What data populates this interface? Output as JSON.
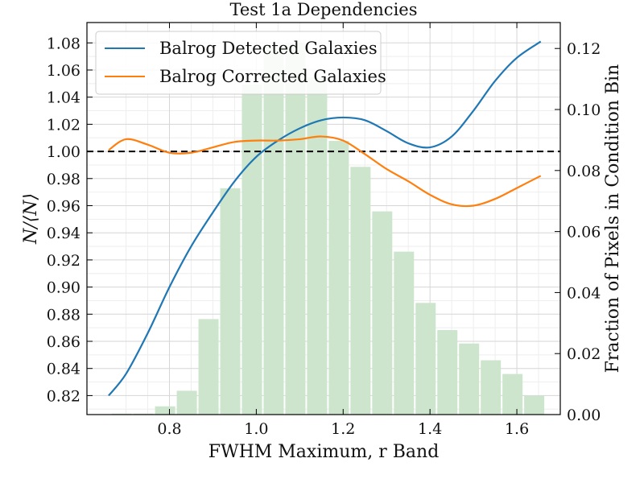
{
  "chart_data": {
    "type": "line",
    "title": "Test 1a Dependencies",
    "xlabel": "FWHM Maximum, r Band",
    "ylabel": "N/⟨N⟩",
    "y2label": "Fraction of Pixels in Condition Bin",
    "xlim": [
      0.61,
      1.7
    ],
    "ylim": [
      0.806,
      1.095
    ],
    "y2lim": [
      0.0,
      0.1285
    ],
    "xticks": [
      "0.8",
      "1.0",
      "1.2",
      "1.4",
      "1.6"
    ],
    "yticks": [
      "0.82",
      "0.84",
      "0.86",
      "0.88",
      "0.90",
      "0.92",
      "0.94",
      "0.96",
      "0.98",
      "1.00",
      "1.02",
      "1.04",
      "1.06",
      "1.08"
    ],
    "y2ticks": [
      "0.00",
      "0.02",
      "0.04",
      "0.06",
      "0.08",
      "0.10",
      "0.12"
    ],
    "reference_line": 1.0,
    "legend_position": "top-left",
    "grid": true,
    "series": [
      {
        "name": "Balrog Detected Galaxies",
        "color": "#1f77b4",
        "x": [
          0.66,
          0.7,
          0.75,
          0.8,
          0.85,
          0.9,
          0.95,
          1.0,
          1.05,
          1.1,
          1.15,
          1.2,
          1.25,
          1.3,
          1.35,
          1.4,
          1.45,
          1.5,
          1.55,
          1.6,
          1.655
        ],
        "y": [
          0.82,
          0.836,
          0.866,
          0.9,
          0.93,
          0.955,
          0.978,
          0.996,
          1.008,
          1.017,
          1.023,
          1.025,
          1.023,
          1.015,
          1.006,
          1.003,
          1.011,
          1.03,
          1.052,
          1.069,
          1.081
        ]
      },
      {
        "name": "Balrog Corrected Galaxies",
        "color": "#ff7f0e",
        "x": [
          0.66,
          0.7,
          0.75,
          0.8,
          0.85,
          0.9,
          0.95,
          1.0,
          1.05,
          1.1,
          1.15,
          1.2,
          1.25,
          1.3,
          1.35,
          1.4,
          1.45,
          1.5,
          1.55,
          1.6,
          1.655
        ],
        "y": [
          1.001,
          1.009,
          1.005,
          0.999,
          0.999,
          1.003,
          1.007,
          1.008,
          1.008,
          1.009,
          1.011,
          1.008,
          0.998,
          0.987,
          0.978,
          0.968,
          0.961,
          0.96,
          0.965,
          0.973,
          0.982
        ]
      }
    ],
    "histogram": {
      "color": "#cce5cc",
      "bin_width": 0.05,
      "bin_centers": [
        0.69,
        0.74,
        0.79,
        0.84,
        0.89,
        0.94,
        0.99,
        1.04,
        1.09,
        1.14,
        1.19,
        1.24,
        1.29,
        1.34,
        1.39,
        1.44,
        1.49,
        1.54,
        1.59,
        1.64
      ],
      "values": [
        0.0003,
        0.0003,
        0.0027,
        0.0078,
        0.0313,
        0.0742,
        0.1082,
        0.1205,
        0.1218,
        0.1105,
        0.0897,
        0.0812,
        0.0666,
        0.0534,
        0.0366,
        0.0277,
        0.0233,
        0.0178,
        0.0133,
        0.0062
      ]
    }
  }
}
